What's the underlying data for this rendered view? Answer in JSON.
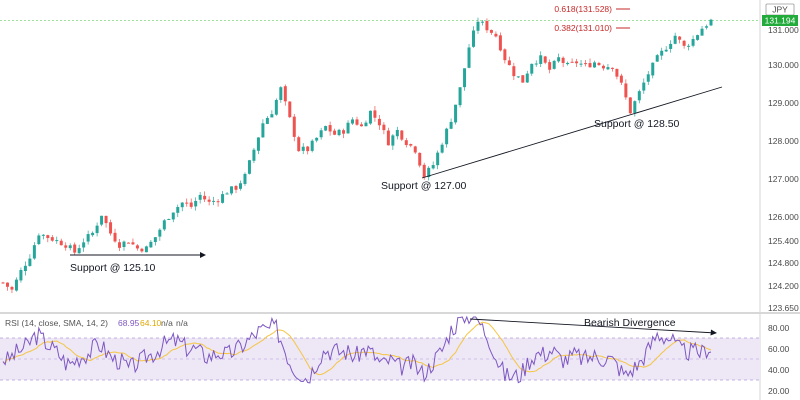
{
  "chart_data": {
    "type": "candlestick",
    "currency": "JPY",
    "last_price": "131.194",
    "y_ticks": [
      "131.000",
      "130.000",
      "129.000",
      "128.000",
      "127.000",
      "126.000",
      "125.400",
      "124.800",
      "124.200",
      "123.650"
    ],
    "ylim": [
      123.65,
      131.7
    ],
    "price_path": [
      [
        0,
        124.3
      ],
      [
        2,
        124.1
      ],
      [
        4,
        124.6
      ],
      [
        6,
        125.0
      ],
      [
        8,
        125.6
      ],
      [
        10,
        125.5
      ],
      [
        12,
        125.4
      ],
      [
        14,
        125.3
      ],
      [
        16,
        125.1
      ],
      [
        18,
        125.4
      ],
      [
        20,
        125.6
      ],
      [
        22,
        126.1
      ],
      [
        24,
        125.6
      ],
      [
        26,
        125.3
      ],
      [
        28,
        125.4
      ],
      [
        30,
        125.2
      ],
      [
        32,
        125.2
      ],
      [
        34,
        125.5
      ],
      [
        36,
        125.9
      ],
      [
        38,
        126.2
      ],
      [
        40,
        126.4
      ],
      [
        42,
        126.3
      ],
      [
        44,
        126.6
      ],
      [
        46,
        126.4
      ],
      [
        48,
        126.5
      ],
      [
        50,
        126.7
      ],
      [
        52,
        126.8
      ],
      [
        54,
        127.1
      ],
      [
        56,
        127.8
      ],
      [
        58,
        128.5
      ],
      [
        60,
        128.8
      ],
      [
        62,
        129.4
      ],
      [
        64,
        128.6
      ],
      [
        66,
        127.8
      ],
      [
        68,
        127.8
      ],
      [
        70,
        128.1
      ],
      [
        72,
        128.4
      ],
      [
        74,
        128.2
      ],
      [
        76,
        128.3
      ],
      [
        78,
        128.6
      ],
      [
        80,
        128.4
      ],
      [
        82,
        128.8
      ],
      [
        84,
        128.5
      ],
      [
        86,
        128.0
      ],
      [
        88,
        128.3
      ],
      [
        90,
        128.0
      ],
      [
        92,
        127.8
      ],
      [
        94,
        127.1
      ],
      [
        96,
        127.4
      ],
      [
        98,
        128.0
      ],
      [
        100,
        128.6
      ],
      [
        102,
        129.4
      ],
      [
        104,
        130.5
      ],
      [
        106,
        131.2
      ],
      [
        108,
        131.0
      ],
      [
        110,
        130.8
      ],
      [
        112,
        130.2
      ],
      [
        114,
        129.8
      ],
      [
        116,
        129.6
      ],
      [
        118,
        130.1
      ],
      [
        120,
        130.2
      ],
      [
        122,
        129.9
      ],
      [
        124,
        130.2
      ],
      [
        126,
        130.0
      ],
      [
        128,
        130.1
      ],
      [
        130,
        130.0
      ],
      [
        132,
        130.1
      ],
      [
        134,
        130.0
      ],
      [
        136,
        130.0
      ],
      [
        138,
        129.5
      ],
      [
        140,
        128.8
      ],
      [
        142,
        129.3
      ],
      [
        144,
        129.8
      ],
      [
        146,
        130.2
      ],
      [
        148,
        130.5
      ],
      [
        150,
        130.8
      ],
      [
        152,
        130.5
      ],
      [
        154,
        130.7
      ],
      [
        156,
        131.0
      ],
      [
        158,
        131.19
      ]
    ],
    "annotations": [
      {
        "text": "Support @ 125.10"
      },
      {
        "text": "Support @ 127.00"
      },
      {
        "text": "Support @ 128.50"
      }
    ],
    "fib_levels": [
      {
        "label": "0.618(131.528)",
        "value": 131.528
      },
      {
        "label": "0.382(131.010)",
        "value": 131.01
      }
    ],
    "rsi": {
      "label": "RSI (14, close, SMA, 14, 2)",
      "value": "68.95",
      "sma": "64.10",
      "na1": "n/a",
      "na2": "n/a",
      "y_ticks": [
        "80.00",
        "60.00",
        "40.00",
        "20.00"
      ],
      "ylim": [
        12,
        92
      ],
      "overbought": 70,
      "oversold": 30,
      "annotation": "Bearish Divergence"
    },
    "colors": {
      "up": "#26a69a",
      "down": "#ef5350",
      "rsi_line": "#7e57c2",
      "rsi_sma": "#f5c542",
      "rsi_band": "#ede7f6",
      "fib": "#c62828",
      "price_label_bg": "#22ab3b",
      "trendline": "#131722"
    }
  }
}
